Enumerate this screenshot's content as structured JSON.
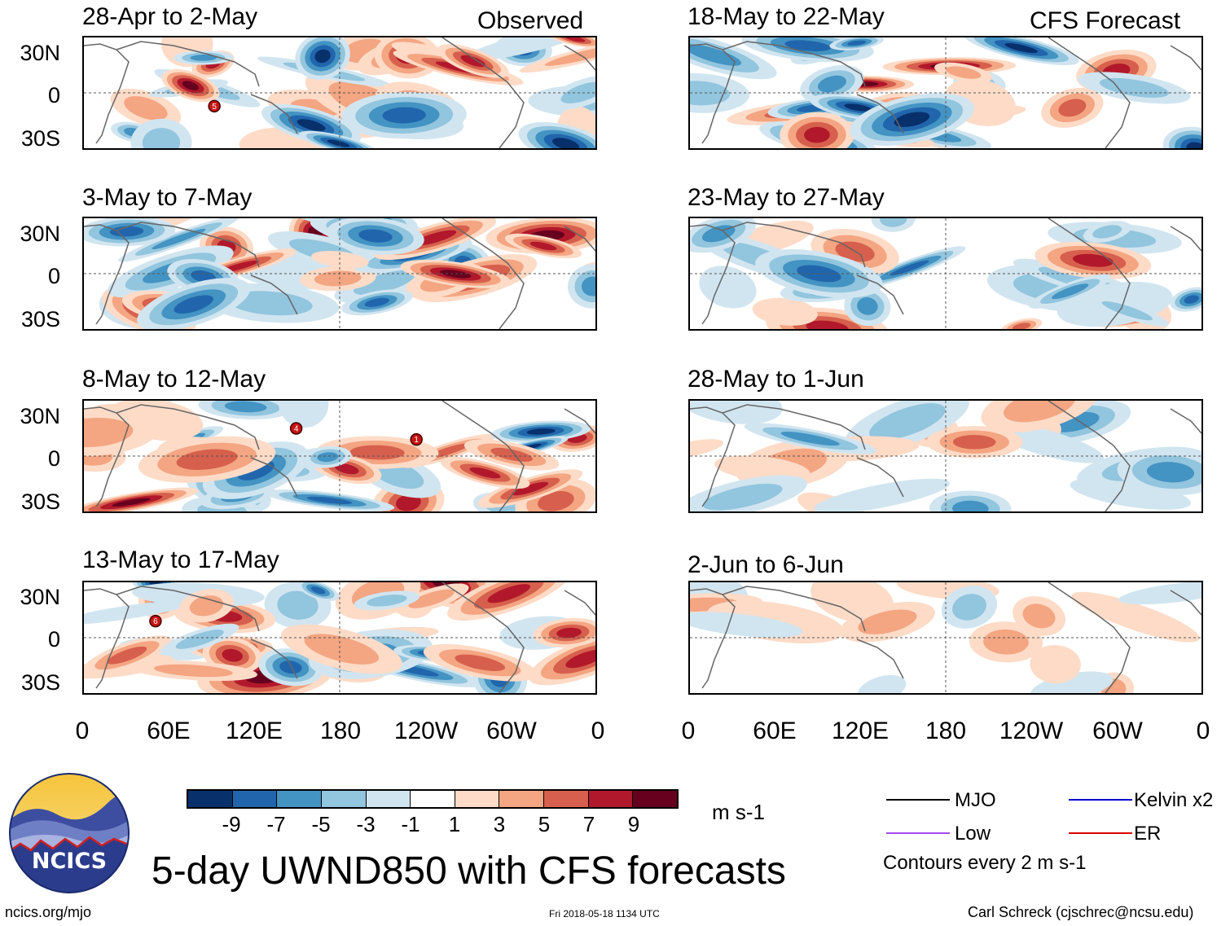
{
  "column_labels": {
    "left": "Observed",
    "right": "CFS Forecast"
  },
  "panels_left": [
    "28-Apr to 2-May",
    "3-May to 7-May",
    "8-May to 12-May",
    "13-May to 17-May"
  ],
  "panels_right": [
    "18-May to 22-May",
    "23-May to 27-May",
    "28-May to 1-Jun",
    "2-Jun to 6-Jun"
  ],
  "lat_labels": [
    "30N",
    "0",
    "30S"
  ],
  "lon_labels": [
    "0",
    "60E",
    "120E",
    "180",
    "120W",
    "60W",
    "0"
  ],
  "storm_markers": [
    {
      "panel": 0,
      "label": "5"
    },
    {
      "panel": 2,
      "label": "4"
    },
    {
      "panel": 2,
      "label": "1"
    },
    {
      "panel": 3,
      "label": "6"
    }
  ],
  "colorbar": {
    "numbers": [
      "-9",
      "-7",
      "-5",
      "-3",
      "-1",
      "1",
      "3",
      "5",
      "7",
      "9"
    ],
    "units": "m s-1",
    "colors": [
      "#08306b",
      "#2166ac",
      "#4393c3",
      "#92c5de",
      "#d1e5f0",
      "#ffffff",
      "#fddbc7",
      "#f4a582",
      "#d6604d",
      "#b2182b",
      "#67001f"
    ]
  },
  "legend": {
    "items": [
      {
        "label": "MJO",
        "color": "#000000"
      },
      {
        "label": "Kelvin x2",
        "color": "#0000cc"
      },
      {
        "label": "Low",
        "color": "#a64bf4"
      },
      {
        "label": "ER",
        "color": "#dd0000"
      }
    ],
    "note": "Contours every 2 m s-1"
  },
  "logo": {
    "text": "NCICS"
  },
  "main_title": "5-day UWND850 with CFS forecasts",
  "footer": {
    "left": "ncics.org/mjo",
    "center": "Fri 2018-05-18 1134 UTC",
    "right": "Carl Schreck (cjschrec@ncsu.edu)"
  },
  "chart_data": {
    "type": "heatmap",
    "title": "5-day UWND850 with CFS forecasts",
    "variable": "850-hPa zonal wind anomaly",
    "units": "m s-1",
    "x_axis": {
      "range": [
        0,
        360
      ],
      "ticks": [
        "0",
        "60E",
        "120E",
        "180",
        "120W",
        "60W",
        "0"
      ]
    },
    "y_axis": {
      "range": [
        -40,
        40
      ],
      "ticks": [
        "30N",
        "0",
        "30S"
      ]
    },
    "color_levels": [
      -9,
      -7,
      -5,
      -3,
      -1,
      1,
      3,
      5,
      7,
      9
    ],
    "observed_periods": [
      "28-Apr to 2-May",
      "3-May to 7-May",
      "8-May to 12-May",
      "13-May to 17-May"
    ],
    "forecast_periods": [
      "18-May to 22-May",
      "23-May to 27-May",
      "28-May to 1-Jun",
      "2-Jun to 6-Jun"
    ],
    "contour_interval": 2
  }
}
